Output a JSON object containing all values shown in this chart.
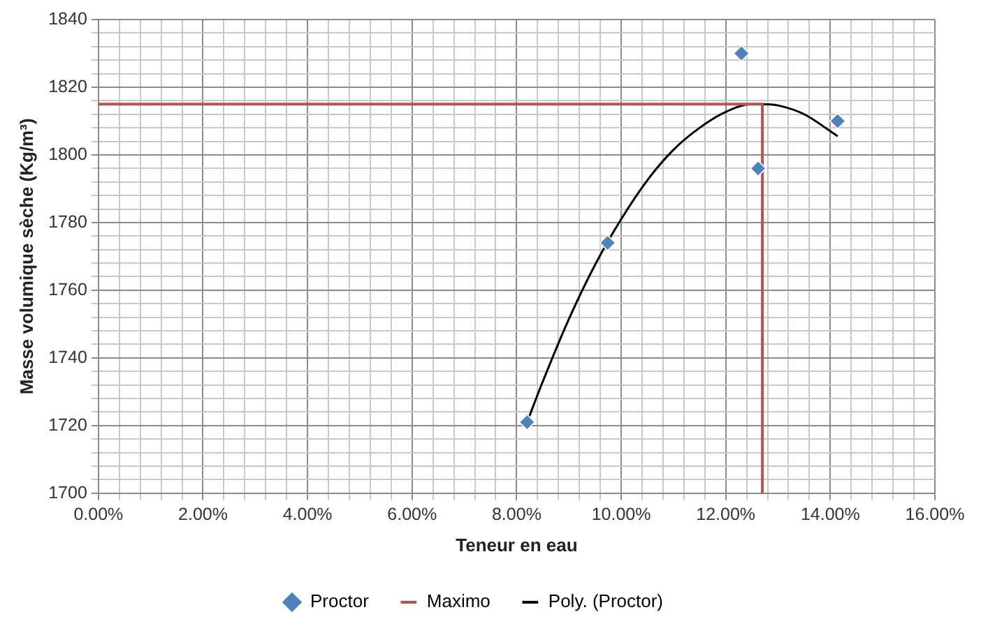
{
  "chart_data": {
    "type": "scatter",
    "xlabel": "Teneur en eau",
    "ylabel": "Masse volumique sèche (Kg/m³)",
    "xlim": [
      0,
      16
    ],
    "ylim": [
      1700,
      1840
    ],
    "xticks": [
      {
        "value": 0,
        "label": "0.00%"
      },
      {
        "value": 0.4,
        "label": null
      },
      {
        "value": 0.8,
        "label": null
      },
      {
        "value": 1.2,
        "label": null
      },
      {
        "value": 1.6,
        "label": null
      },
      {
        "value": 2,
        "label": "2.00%"
      },
      {
        "value": 2.4,
        "label": null
      },
      {
        "value": 2.8,
        "label": null
      },
      {
        "value": 3.2,
        "label": null
      },
      {
        "value": 3.6,
        "label": null
      },
      {
        "value": 4,
        "label": "4.00%"
      },
      {
        "value": 4.4,
        "label": null
      },
      {
        "value": 4.8,
        "label": null
      },
      {
        "value": 5.2,
        "label": null
      },
      {
        "value": 5.6,
        "label": null
      },
      {
        "value": 6,
        "label": "6.00%"
      },
      {
        "value": 6.4,
        "label": null
      },
      {
        "value": 6.8,
        "label": null
      },
      {
        "value": 7.2,
        "label": null
      },
      {
        "value": 7.6,
        "label": null
      },
      {
        "value": 8,
        "label": "8.00%"
      },
      {
        "value": 8.4,
        "label": null
      },
      {
        "value": 8.8,
        "label": null
      },
      {
        "value": 9.2,
        "label": null
      },
      {
        "value": 9.6,
        "label": null
      },
      {
        "value": 10,
        "label": "10.00%"
      },
      {
        "value": 10.4,
        "label": null
      },
      {
        "value": 10.8,
        "label": null
      },
      {
        "value": 11.2,
        "label": null
      },
      {
        "value": 11.6,
        "label": null
      },
      {
        "value": 12,
        "label": "12.00%"
      },
      {
        "value": 12.4,
        "label": null
      },
      {
        "value": 12.8,
        "label": null
      },
      {
        "value": 13.2,
        "label": null
      },
      {
        "value": 13.6,
        "label": null
      },
      {
        "value": 14,
        "label": "14.00%"
      },
      {
        "value": 14.4,
        "label": null
      },
      {
        "value": 14.8,
        "label": null
      },
      {
        "value": 15.2,
        "label": null
      },
      {
        "value": 15.6,
        "label": null
      },
      {
        "value": 16,
        "label": "16.00%"
      }
    ],
    "yticks": [
      1700,
      {
        "value": 1704,
        "label": null
      },
      {
        "value": 1708,
        "label": null
      },
      {
        "value": 1712,
        "label": null
      },
      {
        "value": 1716,
        "label": null
      },
      1720,
      {
        "value": 1724,
        "label": null
      },
      {
        "value": 1728,
        "label": null
      },
      {
        "value": 1732,
        "label": null
      },
      {
        "value": 1736,
        "label": null
      },
      1740,
      {
        "value": 1744,
        "label": null
      },
      {
        "value": 1748,
        "label": null
      },
      {
        "value": 1752,
        "label": null
      },
      {
        "value": 1756,
        "label": null
      },
      1760,
      {
        "value": 1764,
        "label": null
      },
      {
        "value": 1768,
        "label": null
      },
      {
        "value": 1772,
        "label": null
      },
      {
        "value": 1776,
        "label": null
      },
      1780,
      {
        "value": 1784,
        "label": null
      },
      {
        "value": 1788,
        "label": null
      },
      {
        "value": 1792,
        "label": null
      },
      {
        "value": 1796,
        "label": null
      },
      1800,
      {
        "value": 1804,
        "label": null
      },
      {
        "value": 1808,
        "label": null
      },
      {
        "value": 1812,
        "label": null
      },
      {
        "value": 1816,
        "label": null
      },
      1820,
      {
        "value": 1824,
        "label": null
      },
      {
        "value": 1828,
        "label": null
      },
      {
        "value": 1832,
        "label": null
      },
      {
        "value": 1836,
        "label": null
      },
      1840
    ],
    "grid": true,
    "legend": "bottom",
    "series": [
      {
        "name": "Proctor",
        "marker": "diamond",
        "color": "#4f81bd",
        "x": [
          8.2,
          9.74,
          12.3,
          12.62,
          14.14
        ],
        "values": [
          1721,
          1774,
          1830,
          1796,
          1810
        ]
      },
      {
        "name": "Maximo",
        "type": "line",
        "marker": "none",
        "color": "#c0504d",
        "x": [
          0,
          12.7,
          12.7
        ],
        "values": [
          1815,
          1815,
          1700
        ]
      },
      {
        "name": "Poly. (Proctor)",
        "type": "line",
        "marker": "none",
        "color": "#000000",
        "x": [
          8.2,
          8.5,
          9,
          9.5,
          10,
          10.5,
          11,
          11.5,
          12,
          12.5,
          12.7,
          13,
          13.5,
          14,
          14.14
        ],
        "values": [
          1721,
          1733,
          1751.5,
          1767.5,
          1781,
          1792.5,
          1801.5,
          1808,
          1812.7,
          1815,
          1815,
          1814.6,
          1812,
          1807,
          1805.5
        ]
      }
    ]
  }
}
